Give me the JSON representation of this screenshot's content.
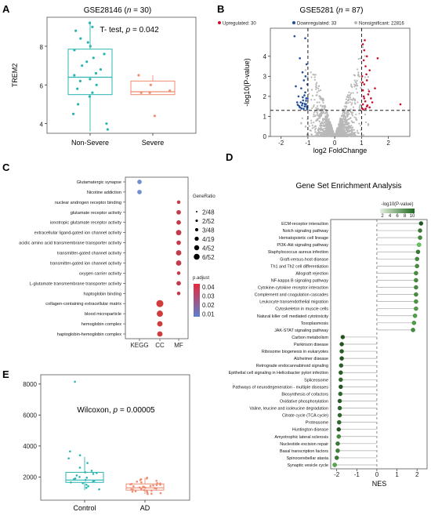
{
  "colors": {
    "teal": "#2ab5b2",
    "salmon": "#ef8c72",
    "up": "#c8102e",
    "down": "#1f4e9a",
    "nonsig": "#b8b8b8",
    "highlight": "#e8283c",
    "nes_green": "#2f7d2f"
  },
  "chart_data": [
    {
      "panel": "A",
      "type": "box",
      "title_prefix": "GSE28146 (",
      "title_italic": "n",
      "title_suffix": " = 30)",
      "annotation_prefix": "T- test, ",
      "annotation_italic": "p",
      "annotation_suffix": " = 0.042",
      "ylabel": "TREM2",
      "ylim": [
        3.5,
        9.5
      ],
      "yticks": [
        4,
        6,
        8
      ],
      "groups": [
        {
          "name": "Non-Severe",
          "q1": 5.5,
          "median": 6.4,
          "q3": 7.85,
          "whisker_low": 3.6,
          "whisker_high": 9.3,
          "points": [
            9.2,
            9.0,
            8.8,
            8.4,
            8.2,
            8.0,
            7.8,
            7.6,
            7.4,
            7.2,
            7.0,
            6.8,
            6.6,
            6.5,
            6.3,
            6.2,
            6.0,
            5.8,
            5.6,
            5.4,
            5.0,
            4.5,
            4.0,
            3.7
          ]
        },
        {
          "name": "Severe",
          "q1": 5.5,
          "median": 5.65,
          "q3": 6.2,
          "whisker_low": 5.5,
          "whisker_high": 6.5,
          "points": [
            6.5,
            6.0,
            5.7,
            5.6,
            5.6,
            4.4
          ]
        }
      ]
    },
    {
      "panel": "B",
      "type": "scatter",
      "title_prefix": "GSE5281 (",
      "title_italic": "n",
      "title_suffix": " = 87)",
      "legend": [
        {
          "label": "Upregulated: 30",
          "color": "#c8102e"
        },
        {
          "label": "Downregulated: 33",
          "color": "#1f4e9a"
        },
        {
          "label": "Nonsignificant: 22816",
          "color": "#b8b8b8"
        }
      ],
      "xlabel": "log2 FoldChange",
      "ylabel": "-log10(P-value)",
      "xlim": [
        -2.4,
        2.8
      ],
      "ylim": [
        0,
        5.4
      ],
      "xticks": [
        -2,
        -1,
        0,
        1,
        2
      ],
      "yticks": [
        0,
        1,
        2,
        3,
        4
      ],
      "vlines": [
        -1,
        1
      ],
      "hline": 1.3,
      "up_points": [
        [
          1.05,
          4.6
        ],
        [
          1.1,
          4.3
        ],
        [
          1.2,
          4.0
        ],
        [
          1.08,
          3.8
        ],
        [
          1.15,
          3.5
        ],
        [
          1.3,
          3.3
        ],
        [
          1.02,
          3.0
        ],
        [
          1.2,
          2.8
        ],
        [
          1.1,
          2.6
        ],
        [
          1.05,
          2.3
        ],
        [
          1.25,
          2.1
        ],
        [
          1.1,
          1.9
        ],
        [
          1.4,
          1.7
        ],
        [
          1.05,
          1.6
        ],
        [
          1.2,
          1.5
        ],
        [
          1.3,
          1.45
        ],
        [
          1.02,
          1.4
        ],
        [
          1.15,
          1.38
        ],
        [
          1.5,
          2.4
        ],
        [
          1.6,
          3.9
        ],
        [
          1.12,
          4.8
        ],
        [
          1.35,
          1.9
        ],
        [
          1.08,
          2.0
        ],
        [
          2.45,
          1.6
        ],
        [
          1.18,
          3.1
        ],
        [
          1.04,
          2.7
        ],
        [
          1.22,
          1.55
        ],
        [
          1.06,
          1.35
        ],
        [
          1.28,
          2.25
        ],
        [
          1.14,
          1.75
        ]
      ],
      "down_points": [
        [
          -1.1,
          4.9
        ],
        [
          -1.5,
          5.0
        ],
        [
          -1.3,
          3.9
        ],
        [
          -1.05,
          3.6
        ],
        [
          -1.2,
          3.2
        ],
        [
          -1.15,
          2.8
        ],
        [
          -1.02,
          2.6
        ],
        [
          -1.25,
          2.4
        ],
        [
          -1.1,
          2.2
        ],
        [
          -1.35,
          2.0
        ],
        [
          -1.06,
          1.9
        ],
        [
          -1.18,
          1.8
        ],
        [
          -1.4,
          1.7
        ],
        [
          -1.08,
          1.6
        ],
        [
          -1.22,
          1.55
        ],
        [
          -1.12,
          1.5
        ],
        [
          -1.3,
          1.45
        ],
        [
          -1.03,
          1.42
        ],
        [
          -1.16,
          1.38
        ],
        [
          -1.45,
          2.5
        ],
        [
          -1.09,
          3.0
        ],
        [
          -1.2,
          1.65
        ],
        [
          -1.27,
          1.7
        ],
        [
          -1.04,
          1.5
        ],
        [
          -1.13,
          2.05
        ],
        [
          -1.33,
          1.52
        ],
        [
          -1.07,
          1.78
        ],
        [
          -1.19,
          1.95
        ],
        [
          -1.24,
          1.4
        ],
        [
          -1.02,
          1.35
        ],
        [
          -1.38,
          1.58
        ],
        [
          -1.11,
          1.62
        ],
        [
          -1.01,
          1.9
        ]
      ]
    },
    {
      "panel": "C",
      "type": "dotplot",
      "categories": [
        "KEGG",
        "CC",
        "MF"
      ],
      "terms": [
        {
          "label": "Glutamatergic synapse",
          "col": "KEGG",
          "ratio": 3,
          "color": "#6f8fcf"
        },
        {
          "label": "Nicotine addiction",
          "col": "KEGG",
          "ratio": 3,
          "color": "#6f8fcf"
        },
        {
          "label": "nuclear androgen receptor binding",
          "col": "MF",
          "ratio": 2,
          "color": "#c33a4a"
        },
        {
          "label": "glutamate receptor activity",
          "col": "MF",
          "ratio": 3,
          "color": "#c33a4a"
        },
        {
          "label": "ionotropic glutamate receptor activity",
          "col": "MF",
          "ratio": 3,
          "color": "#c33a4a"
        },
        {
          "label": "extracellular ligand-gated ion channel activity",
          "col": "MF",
          "ratio": 4,
          "color": "#c33a4a"
        },
        {
          "label": "acidic amino acid transmembrane transporter activity",
          "col": "MF",
          "ratio": 3,
          "color": "#c33a4a"
        },
        {
          "label": "transmitter-gated channel activity",
          "col": "MF",
          "ratio": 4,
          "color": "#c33a4a"
        },
        {
          "label": "transmitter-gated ion channel activity",
          "col": "MF",
          "ratio": 4,
          "color": "#c33a4a"
        },
        {
          "label": "oxygen carrier activity",
          "col": "MF",
          "ratio": 2,
          "color": "#c33a4a"
        },
        {
          "label": "L-glutamate transmembrane transporter activity",
          "col": "MF",
          "ratio": 3,
          "color": "#c33a4a"
        },
        {
          "label": "haptoglobin binding",
          "col": "MF",
          "ratio": 2,
          "color": "#c33a4a"
        },
        {
          "label": "collagen-containing extracellular matrix",
          "col": "CC",
          "ratio": 6,
          "color": "#d23b3b",
          "highlight": true
        },
        {
          "label": "blood microparticle",
          "col": "CC",
          "ratio": 5,
          "color": "#d23b3b"
        },
        {
          "label": "hemoglobin complex",
          "col": "CC",
          "ratio": 4,
          "color": "#d23b3b"
        },
        {
          "label": "haptoglobin-hemoglobin complex",
          "col": "CC",
          "ratio": 4,
          "color": "#d23b3b"
        }
      ],
      "size_legend_title": "GeneRatio",
      "size_legend": [
        "2/48",
        "2/52",
        "3/48",
        "4/19",
        "4/52",
        "6/52"
      ],
      "color_legend_title": "p.adjust",
      "color_legend": [
        "0.04",
        "0.03",
        "0.02",
        "0.01"
      ]
    },
    {
      "panel": "D",
      "type": "lollipop",
      "title": "Gene Set Enrichment Analysis",
      "legend_title": "-log10(P-value)",
      "legend_ticks": [
        "2",
        "4",
        "6",
        "8",
        "10"
      ],
      "xlabel": "NES",
      "xlim": [
        -2.3,
        2.5
      ],
      "xticks": [
        -2,
        -1,
        0,
        1,
        2
      ],
      "terms": [
        {
          "label": "ECM-receptor interaction",
          "nes": 2.2,
          "shade": 0.9
        },
        {
          "label": "Notch signaling pathway",
          "nes": 2.15,
          "shade": 0.7
        },
        {
          "label": "Hematopoietic cell lineage",
          "nes": 2.15,
          "shade": 0.6
        },
        {
          "label": "PI3K-Akt signaling pathway",
          "nes": 2.1,
          "shade": 0.3,
          "highlight": true
        },
        {
          "label": "Staphylococcus aureus infection",
          "nes": 2.05,
          "shade": 0.7
        },
        {
          "label": "Graft-versus-host disease",
          "nes": 2.0,
          "shade": 0.6
        },
        {
          "label": "Th1 and Th2 cell differentiation",
          "nes": 2.0,
          "shade": 0.6
        },
        {
          "label": "Allograft rejection",
          "nes": 1.95,
          "shade": 0.6
        },
        {
          "label": "NF-kappa B signaling pathway",
          "nes": 1.95,
          "shade": 0.6
        },
        {
          "label": "Cytokine-cytokine receptor interaction",
          "nes": 1.95,
          "shade": 0.6
        },
        {
          "label": "Complement and coagulation cascades",
          "nes": 1.95,
          "shade": 0.6
        },
        {
          "label": "Leukocyte transendothelial migration",
          "nes": 1.95,
          "shade": 0.55
        },
        {
          "label": "Cytoskeleton in muscle cells",
          "nes": 1.95,
          "shade": 0.5
        },
        {
          "label": "Natural killer cell mediated cytotoxicity",
          "nes": 1.9,
          "shade": 0.5
        },
        {
          "label": "Toxoplasmosis",
          "nes": 1.85,
          "shade": 0.5
        },
        {
          "label": "JAK-STAT signaling pathway",
          "nes": 1.8,
          "shade": 0.6
        },
        {
          "label": "Carbon metabolism",
          "nes": -1.7,
          "shade": 0.9
        },
        {
          "label": "Parkinson disease",
          "nes": -1.75,
          "shade": 0.9
        },
        {
          "label": "Ribosome biogenesis in eukaryotes",
          "nes": -1.75,
          "shade": 0.85
        },
        {
          "label": "Alzheimer disease",
          "nes": -1.75,
          "shade": 0.9
        },
        {
          "label": "Retrograde endocannabinoid signaling",
          "nes": -1.78,
          "shade": 0.85
        },
        {
          "label": "Epithelial cell signaling in Helicobacter pylori infection",
          "nes": -1.8,
          "shade": 0.85
        },
        {
          "label": "Spliceosome",
          "nes": -1.8,
          "shade": 0.8
        },
        {
          "label": "Pathways of neurodegeneration - multiple diseases",
          "nes": -1.8,
          "shade": 0.9
        },
        {
          "label": "Biosynthesis of cofactors",
          "nes": -1.82,
          "shade": 0.8
        },
        {
          "label": "Oxidative phosphorylation",
          "nes": -1.85,
          "shade": 0.85
        },
        {
          "label": "Valine, leucine and isoleucine degradation",
          "nes": -1.85,
          "shade": 0.8
        },
        {
          "label": "Citrate cycle (TCA cycle)",
          "nes": -1.85,
          "shade": 0.8
        },
        {
          "label": "Proteasome",
          "nes": -1.88,
          "shade": 0.8
        },
        {
          "label": "Huntington disease",
          "nes": -1.9,
          "shade": 0.9
        },
        {
          "label": "Amyotrophic lateral sclerosis",
          "nes": -1.9,
          "shade": 0.6
        },
        {
          "label": "Nucleotide excision repair",
          "nes": -1.95,
          "shade": 0.7
        },
        {
          "label": "Basal transcription factors",
          "nes": -1.95,
          "shade": 0.65
        },
        {
          "label": "Spinocerebellar ataxia",
          "nes": -2.0,
          "shade": 0.7
        },
        {
          "label": "Synaptic vesicle cycle",
          "nes": -2.1,
          "shade": 0.45
        }
      ]
    },
    {
      "panel": "E",
      "type": "box",
      "annotation_prefix": "Wilcoxon, ",
      "annotation_italic": "p",
      "annotation_suffix": " = 0.00005",
      "ylim": [
        500,
        8600
      ],
      "yticks": [
        2000,
        4000,
        6000,
        8000
      ],
      "groups": [
        {
          "name": "Control",
          "q1": 1650,
          "median": 1800,
          "q3": 2300,
          "whisker_low": 1150,
          "whisker_high": 3300,
          "points": [
            8150,
            3650,
            3400,
            3200,
            2900,
            2600,
            2400,
            2300,
            2250,
            2200,
            2100,
            2000,
            1950,
            1900,
            1850,
            1800,
            1750,
            1700,
            1650,
            1600,
            1500,
            1400,
            1300,
            1200
          ]
        },
        {
          "name": "AD",
          "q1": 1150,
          "median": 1300,
          "q3": 1550,
          "whisker_low": 900,
          "whisker_high": 1950,
          "points": [
            1950,
            1900,
            1850,
            1800,
            1750,
            1700,
            1650,
            1600,
            1580,
            1550,
            1520,
            1500,
            1480,
            1450,
            1420,
            1400,
            1380,
            1350,
            1320,
            1300,
            1280,
            1250,
            1220,
            1200,
            1180,
            1150,
            1120,
            1100,
            1080,
            1050,
            1000,
            950,
            920,
            900
          ]
        }
      ]
    }
  ]
}
